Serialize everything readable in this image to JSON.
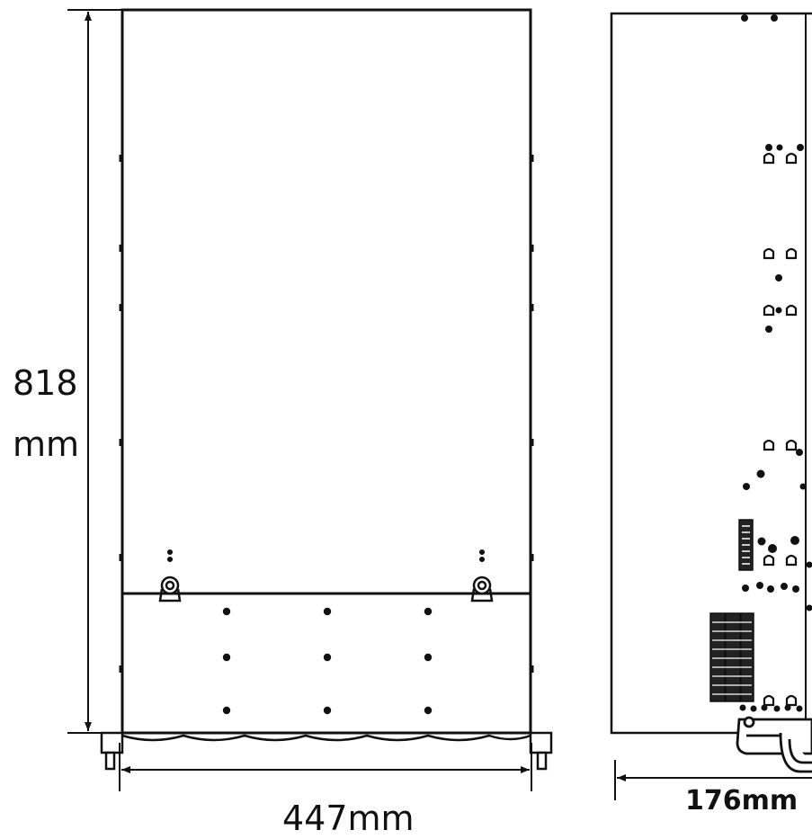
{
  "dimensions": {
    "height": {
      "value": "818",
      "unit": "mm"
    },
    "width": "447mm",
    "depth": "176mm"
  },
  "colors": {
    "line": "#111111",
    "background": "#ffffff"
  }
}
